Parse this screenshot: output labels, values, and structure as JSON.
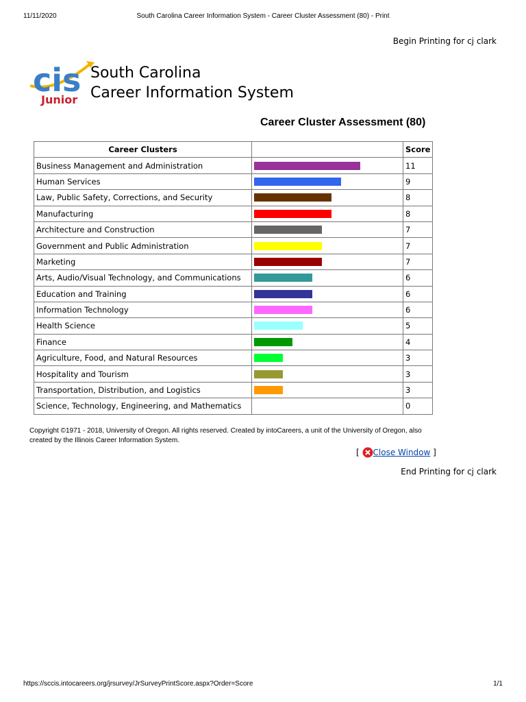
{
  "print_header": {
    "date": "11/11/2020",
    "title": "South Carolina Career Information System - Career Cluster Assessment (80) - Print"
  },
  "begin": "Begin Printing for cj clark",
  "logo": {
    "mark": "cis",
    "badge": "Junior",
    "line1": "South Carolina",
    "line2": "Career Information System"
  },
  "heading": "Career Cluster Assessment (80)",
  "table": {
    "columns": {
      "cluster": "Career Clusters",
      "score": "Score"
    },
    "rows": [
      {
        "cluster": "Business Management and Administration",
        "score": 11,
        "color": "#993399"
      },
      {
        "cluster": "Human Services",
        "score": 9,
        "color": "#3366ee"
      },
      {
        "cluster": "Law, Public Safety, Corrections, and Security",
        "score": 8,
        "color": "#663300"
      },
      {
        "cluster": "Manufacturing",
        "score": 8,
        "color": "#ff0000"
      },
      {
        "cluster": "Architecture and Construction",
        "score": 7,
        "color": "#666666"
      },
      {
        "cluster": "Government and Public Administration",
        "score": 7,
        "color": "#ffff00"
      },
      {
        "cluster": "Marketing",
        "score": 7,
        "color": "#990000"
      },
      {
        "cluster": "Arts, Audio/Visual Technology, and Communications",
        "score": 6,
        "color": "#339999"
      },
      {
        "cluster": "Education and Training",
        "score": 6,
        "color": "#333399"
      },
      {
        "cluster": "Information Technology",
        "score": 6,
        "color": "#ff66ff"
      },
      {
        "cluster": "Health Science",
        "score": 5,
        "color": "#99ffff"
      },
      {
        "cluster": "Finance",
        "score": 4,
        "color": "#009900"
      },
      {
        "cluster": "Agriculture, Food, and Natural Resources",
        "score": 3,
        "color": "#00ff33"
      },
      {
        "cluster": "Hospitality and Tourism",
        "score": 3,
        "color": "#999933"
      },
      {
        "cluster": "Transportation, Distribution, and Logistics",
        "score": 3,
        "color": "#ff9900"
      },
      {
        "cluster": "Science, Technology, Engineering, and Mathematics",
        "score": 0
      }
    ]
  },
  "copyright": "Copyright ©1971 - 2018, University of Oregon. All rights reserved. Created by intoCareers, a unit of the University of Oregon, also created by the Illinois Career Information System.",
  "close": {
    "open": "[",
    "link": "Close Window",
    "close": "]"
  },
  "end": "End Printing for cj clark",
  "print_footer": {
    "url": "https://sccis.intocareers.org/jrsurvey/JrSurveyPrintScore.aspx?Order=Score",
    "page": "1/1"
  }
}
